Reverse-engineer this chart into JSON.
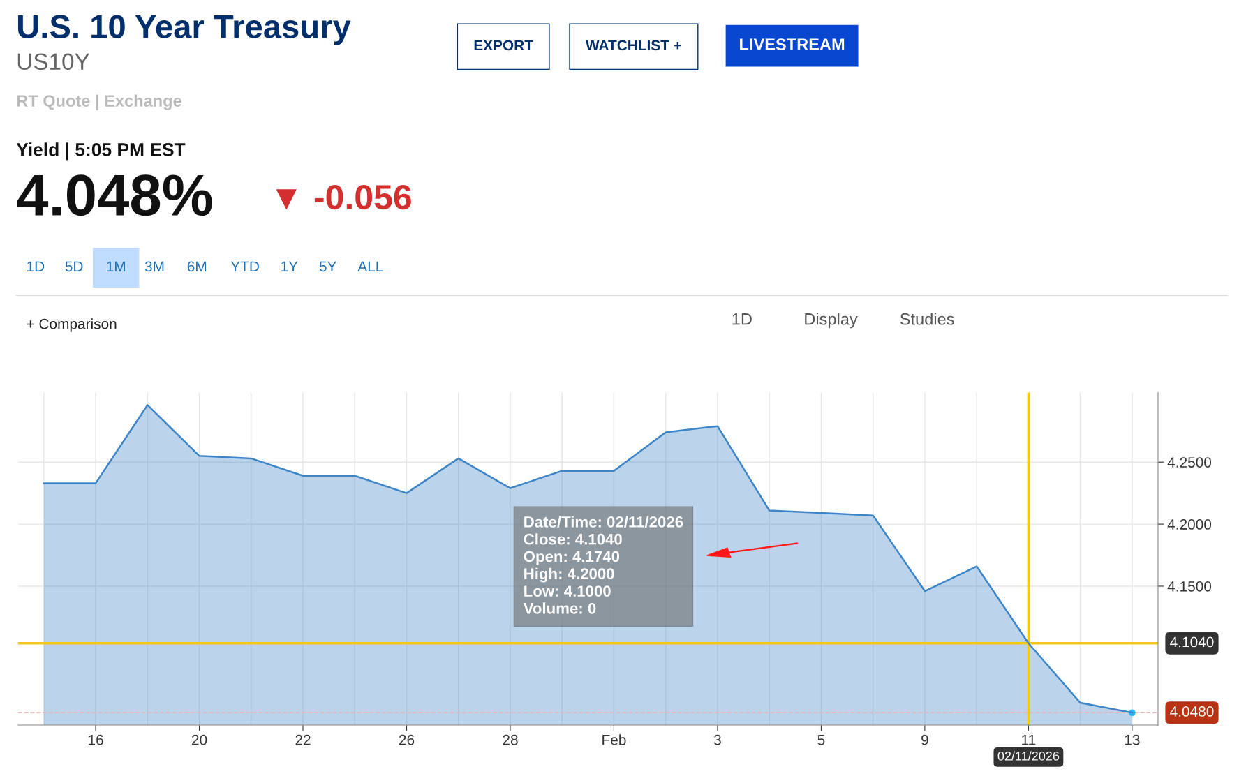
{
  "chart_data": {
    "type": "area",
    "title": "U.S. 10 Year Treasury",
    "subtitle": "US10Y",
    "categories": [
      null,
      "16",
      null,
      "20",
      null,
      "22",
      null,
      "26",
      null,
      "28",
      null,
      "Feb",
      null,
      "3",
      null,
      "5",
      null,
      "9",
      null,
      "11",
      null,
      "13"
    ],
    "series": [
      {
        "color": "#3d85c6",
        "values": [
          4.233,
          4.233,
          4.296,
          4.255,
          4.253,
          4.239,
          4.239,
          4.225,
          4.253,
          4.229,
          4.243,
          4.243,
          4.274,
          4.279,
          4.211,
          4.209,
          4.207,
          4.146,
          4.166,
          4.104,
          4.056,
          4.048
        ]
      }
    ],
    "ylim": [
      4.038,
      4.306
    ],
    "yticks": [
      {
        "value": 4.15,
        "label": "4.1500"
      },
      {
        "value": 4.2,
        "label": "4.2000"
      },
      {
        "value": 4.25,
        "label": "4.2500"
      }
    ],
    "grid": true,
    "ref_lines": [
      {
        "axis": "y",
        "value": 4.104,
        "label": "4.1040",
        "color": "#f5c518",
        "line_style": "solid"
      },
      {
        "axis": "y",
        "value": 4.048,
        "label": "4.0480",
        "color": "#e8b4b4",
        "line_style": "dashed"
      },
      {
        "axis": "x",
        "value": "11",
        "label": "02/11/2026",
        "color": "#f5c518",
        "line_style": "solid"
      }
    ],
    "annotations": [
      "RT Quote | Exchange",
      "Yield | 5:05 PM EST",
      "4.048%",
      "▼ -0.056",
      "EXPORT",
      "WATCHLIST +",
      "LIVESTREAM",
      "1D",
      "5D",
      "1M",
      "3M",
      "6M",
      "YTD",
      "1Y",
      "5Y",
      "ALL",
      "+ Comparison",
      "1D",
      "Display",
      "Studies",
      "Date/Time: 02/11/2026\nClose: 4.1040\nOpen: 4.1740\nHigh: 4.2000\nLow: 4.1000\nVolume: 0"
    ]
  }
}
